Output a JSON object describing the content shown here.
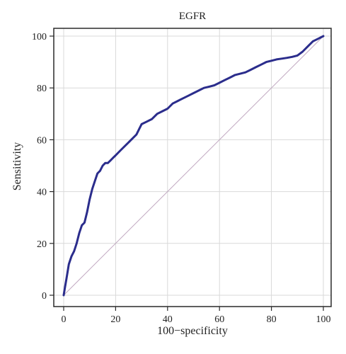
{
  "chart_data": {
    "type": "line",
    "title": "EGFR",
    "xlabel": "100−specificity",
    "ylabel": "Sensitivity",
    "xlim": [
      0,
      100
    ],
    "ylim": [
      0,
      100
    ],
    "xticks": [
      0,
      20,
      40,
      60,
      80,
      100
    ],
    "yticks": [
      0,
      20,
      40,
      60,
      80,
      100
    ],
    "grid": true,
    "series": [
      {
        "role": "roc-curve",
        "color": "#2b2d8c",
        "x": [
          0,
          0.5,
          1,
          1.5,
          2,
          3,
          4,
          5,
          6,
          7,
          8,
          9,
          10,
          11,
          12,
          13,
          14,
          15,
          16,
          17,
          18,
          19,
          20,
          22,
          24,
          25,
          26,
          28,
          29,
          30,
          32,
          34,
          36,
          38,
          40,
          42,
          44,
          46,
          48,
          50,
          52,
          54,
          56,
          58,
          60,
          62,
          64,
          66,
          68,
          70,
          72,
          74,
          76,
          78,
          80,
          82,
          84,
          86,
          88,
          90,
          92,
          94,
          96,
          98,
          100
        ],
        "y": [
          0,
          3,
          6,
          9,
          12,
          15,
          17,
          20,
          24,
          27,
          28,
          32,
          37,
          41,
          44,
          47,
          48,
          50,
          51,
          51,
          52,
          53,
          54,
          56,
          58,
          59,
          60,
          62,
          64,
          66,
          67,
          68,
          70,
          71,
          72,
          74,
          75,
          76,
          77,
          78,
          79,
          80,
          80.5,
          81,
          82,
          83,
          84,
          85,
          85.5,
          86,
          87,
          88,
          89,
          90,
          90.5,
          91,
          91.3,
          91.6,
          92,
          92.5,
          94,
          96,
          98,
          99,
          100
        ]
      },
      {
        "role": "reference-line",
        "color": "#c0a8c0",
        "x": [
          0,
          100
        ],
        "y": [
          0,
          100
        ]
      }
    ]
  }
}
